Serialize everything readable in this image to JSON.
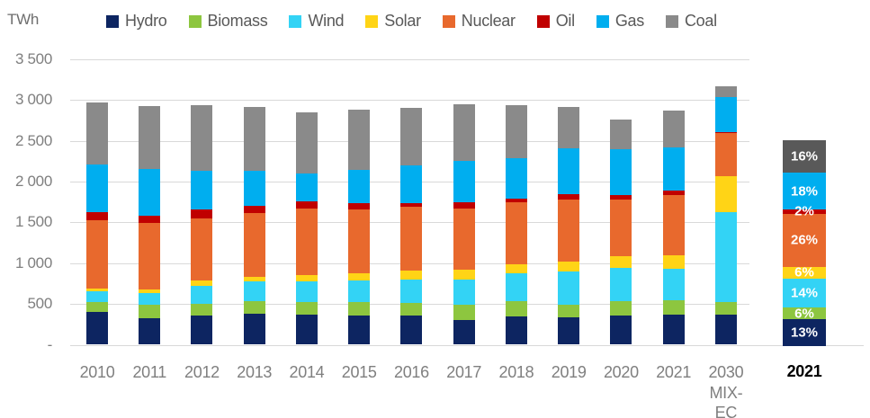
{
  "chart_data": {
    "type": "bar",
    "stacked": true,
    "title": "",
    "unit": "TWh",
    "ylabel": "TWh",
    "ylim": [
      0,
      3500
    ],
    "ytick_step": 500,
    "ytick_labels": [
      "3 500",
      "3 000",
      "2 500",
      "2 000",
      "1 500",
      "1 000",
      "500",
      "-"
    ],
    "grid": "horizontal",
    "legend_position": "top",
    "categories": [
      {
        "label": "2010"
      },
      {
        "label": "2011"
      },
      {
        "label": "2012"
      },
      {
        "label": "2013"
      },
      {
        "label": "2014"
      },
      {
        "label": "2015"
      },
      {
        "label": "2016"
      },
      {
        "label": "2017"
      },
      {
        "label": "2018"
      },
      {
        "label": "2019"
      },
      {
        "label": "2020"
      },
      {
        "label": "2021"
      },
      {
        "label": "2030",
        "sublabel": "MIX-EC"
      }
    ],
    "series": [
      {
        "name": "Hydro",
        "color": "#0d2561",
        "values": [
          400,
          325,
          355,
          380,
          370,
          355,
          360,
          300,
          350,
          330,
          360,
          370,
          370
        ]
      },
      {
        "name": "Biomass",
        "color": "#8dc63f",
        "values": [
          125,
          160,
          150,
          155,
          150,
          170,
          150,
          185,
          185,
          160,
          170,
          175,
          150
        ]
      },
      {
        "name": "Wind",
        "color": "#33d3f5",
        "values": [
          130,
          145,
          215,
          240,
          255,
          260,
          285,
          315,
          345,
          405,
          415,
          390,
          1105
        ]
      },
      {
        "name": "Solar",
        "color": "#ffd416",
        "values": [
          35,
          50,
          65,
          60,
          75,
          95,
          110,
          115,
          110,
          120,
          140,
          160,
          440
        ]
      },
      {
        "name": "Nuclear",
        "color": "#e8692d",
        "values": [
          830,
          810,
          760,
          775,
          820,
          780,
          780,
          750,
          750,
          765,
          695,
          735,
          525
        ]
      },
      {
        "name": "Oil",
        "color": "#c00000",
        "values": [
          100,
          95,
          110,
          90,
          85,
          75,
          50,
          75,
          55,
          60,
          50,
          55,
          15
        ]
      },
      {
        "name": "Gas",
        "color": "#00aeef",
        "values": [
          590,
          570,
          480,
          430,
          345,
          405,
          460,
          515,
          490,
          570,
          570,
          530,
          425
        ]
      },
      {
        "name": "Coal",
        "color": "#8a8a8a",
        "values": [
          760,
          765,
          795,
          785,
          750,
          740,
          710,
          695,
          645,
          500,
          360,
          450,
          135
        ]
      }
    ],
    "pct_bar": {
      "axis_label": "2021",
      "segments_top_down": [
        {
          "name": "Coal",
          "pct": 16,
          "pct_label": "16%",
          "color": "#595959"
        },
        {
          "name": "Gas",
          "pct": 18,
          "pct_label": "18%",
          "color": "#00aeef"
        },
        {
          "name": "Oil",
          "pct": 2,
          "pct_label": "2%",
          "color": "#c00000"
        },
        {
          "name": "Nuclear",
          "pct": 26,
          "pct_label": "26%",
          "color": "#e8692d"
        },
        {
          "name": "Solar",
          "pct": 6,
          "pct_label": "6%",
          "color": "#ffd416"
        },
        {
          "name": "Wind",
          "pct": 14,
          "pct_label": "14%",
          "color": "#33d3f5"
        },
        {
          "name": "Biomass",
          "pct": 6,
          "pct_label": "6%",
          "color": "#8dc63f"
        },
        {
          "name": "Hydro",
          "pct": 13,
          "pct_label": "13%",
          "color": "#0d2561"
        }
      ]
    }
  }
}
